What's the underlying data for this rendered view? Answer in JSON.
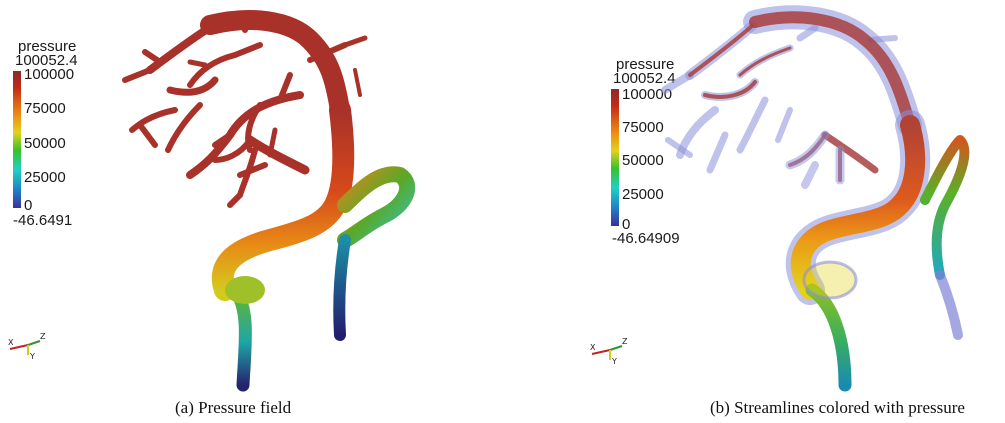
{
  "panels": [
    {
      "legend": {
        "title": "pressure",
        "max_value": "100052.4",
        "min_value": "-46.6491",
        "ticks": [
          "100000",
          "75000",
          "50000",
          "25000",
          "0"
        ]
      },
      "axes": {
        "x": "X",
        "y": "Y",
        "z": "Z"
      },
      "caption": "(a)  Pressure field"
    },
    {
      "legend": {
        "title": "pressure",
        "max_value": "100052.4",
        "min_value": "-46.64909",
        "ticks": [
          "100000",
          "75000",
          "50000",
          "25000",
          "0"
        ]
      },
      "axes": {
        "x": "X",
        "y": "Y",
        "z": "Z"
      },
      "caption": "(b)  Streamlines colored with pressure"
    }
  ],
  "colormap": [
    "#3b2f9b",
    "#1e86c8",
    "#1fd1c2",
    "#37c22b",
    "#e3d21d",
    "#f08a12",
    "#c22a17",
    "#8a2b28"
  ]
}
